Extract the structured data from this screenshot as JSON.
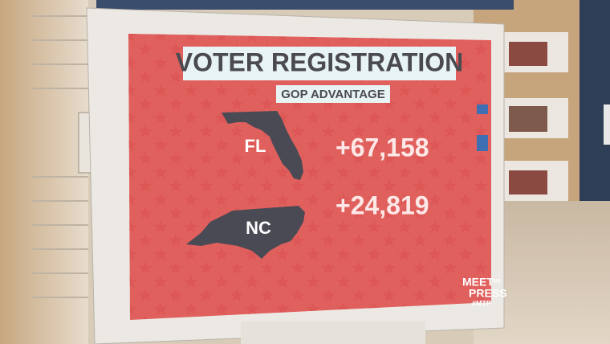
{
  "screen": {
    "title": "VOTER REGISTRATION",
    "subtitle": "GOP ADVANTAGE",
    "rows": [
      {
        "state": "FL",
        "value": "+67,158"
      },
      {
        "state": "NC",
        "value": "+24,819"
      }
    ]
  },
  "logo": {
    "line1": "MEET",
    "line2": "THE",
    "line3": "PRESS",
    "hashtag": "#MTP"
  }
}
